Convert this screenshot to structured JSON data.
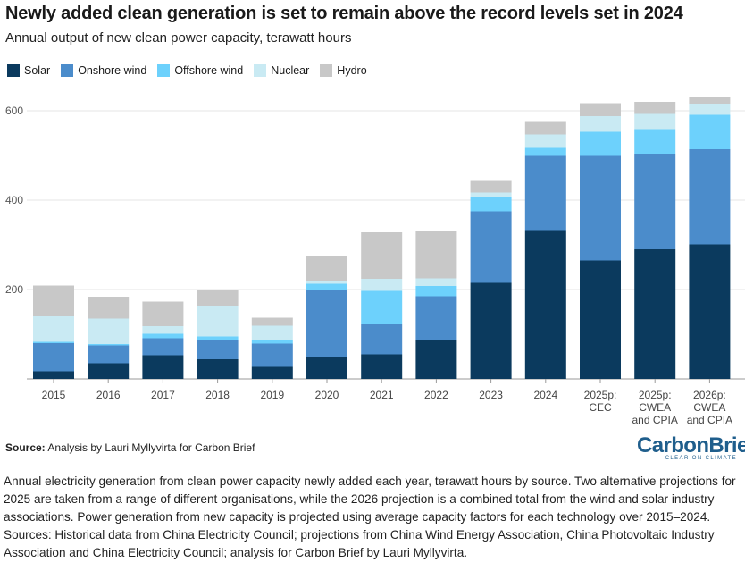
{
  "chart_data": {
    "type": "bar",
    "stacked": true,
    "title": "Newly added clean generation is set to remain above the record levels set in 2024",
    "subtitle": "Annual output of new clean power capacity, terawatt hours",
    "categories": [
      [
        "2015"
      ],
      [
        "2016"
      ],
      [
        "2017"
      ],
      [
        "2018"
      ],
      [
        "2019"
      ],
      [
        "2020"
      ],
      [
        "2021"
      ],
      [
        "2022"
      ],
      [
        "2023"
      ],
      [
        "2024"
      ],
      [
        "2025p:",
        "CEC"
      ],
      [
        "2025p:",
        "CWEA",
        "and CPIA"
      ],
      [
        "2026p:",
        "CWEA",
        "and CPIA"
      ]
    ],
    "ylim": [
      0,
      640
    ],
    "yticks": [
      200,
      400,
      600
    ],
    "grid": true,
    "series": [
      {
        "name": "Solar",
        "color": "#0b3a5e",
        "values": [
          17,
          35,
          53,
          44,
          27,
          48,
          55,
          88,
          215,
          333,
          265,
          290,
          301
        ]
      },
      {
        "name": "Onshore wind",
        "color": "#4b8ccb",
        "values": [
          63,
          40,
          38,
          42,
          52,
          152,
          67,
          97,
          160,
          166,
          234,
          214,
          213
        ]
      },
      {
        "name": "Offshore wind",
        "color": "#6dd1fc",
        "values": [
          3,
          3,
          10,
          9,
          7,
          13,
          75,
          23,
          31,
          18,
          54,
          55,
          77
        ]
      },
      {
        "name": "Nuclear",
        "color": "#c9eaf3",
        "values": [
          57,
          57,
          17,
          68,
          33,
          5,
          27,
          17,
          11,
          30,
          35,
          34,
          25
        ]
      },
      {
        "name": "Hydro",
        "color": "#c8c8c8",
        "values": [
          69,
          49,
          55,
          37,
          18,
          58,
          104,
          105,
          28,
          30,
          29,
          27,
          14
        ]
      }
    ]
  },
  "source": {
    "label": "Source:",
    "text": " Analysis by Lauri Myllyvirta for Carbon Brief"
  },
  "brand": {
    "name": "CarbonBrief",
    "tagline": "CLEAR ON CLIMATE"
  },
  "caption": "Annual electricity generation from clean power capacity newly added each year, terawatt hours by source. Two alternative projections for 2025 are taken from a range of different organisations, while the 2026 projection is a combined total from the wind and solar industry associations. Power generation from new capacity is projected using average capacity factors for each technology over 2015–2024. Sources: Historical data from China Electricity Council; projections from China Wind Energy Association, China Photovoltaic Industry Association and China Electricity Council; analysis for Carbon Brief by Lauri Myllyvirta."
}
